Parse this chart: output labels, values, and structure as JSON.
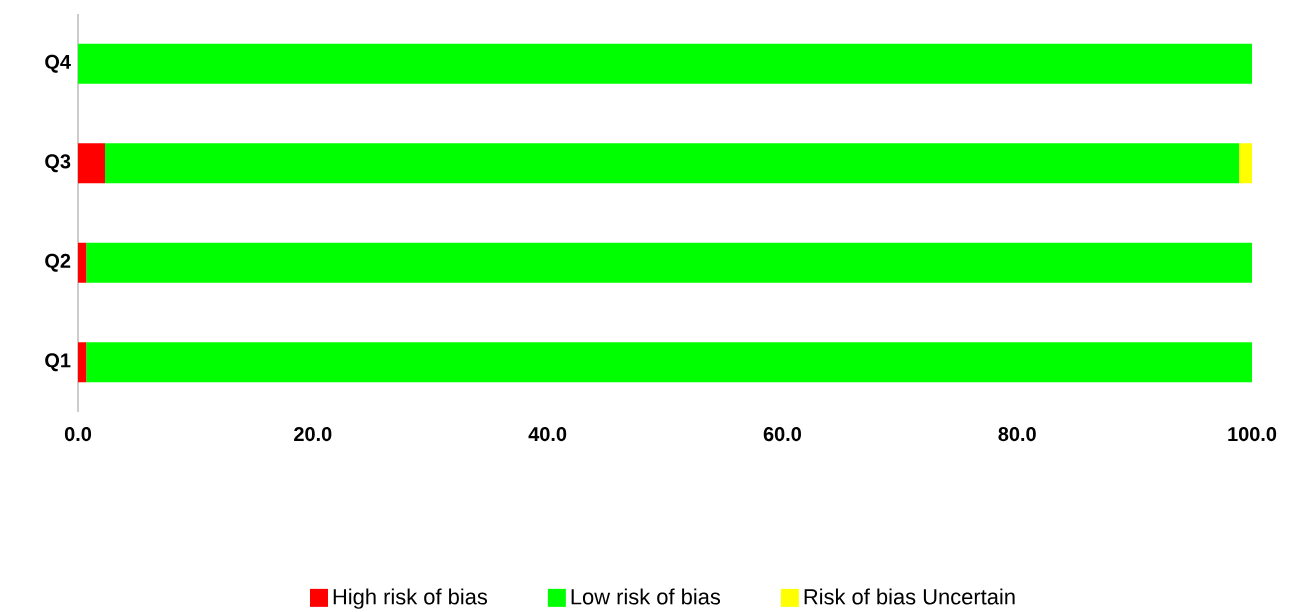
{
  "chart_data": {
    "type": "bar",
    "orientation": "horizontal",
    "stacked": true,
    "categories": [
      "Q4",
      "Q3",
      "Q2",
      "Q1"
    ],
    "series": [
      {
        "name": "High risk of bias",
        "color": "#ff0000",
        "values": [
          0,
          2.3,
          0.7,
          0.7
        ]
      },
      {
        "name": "Low risk of bias",
        "color": "#00ff00",
        "values": [
          100,
          96.6,
          99.3,
          99.3
        ]
      },
      {
        "name": "Risk of bias Uncertain",
        "color": "#ffff00",
        "values": [
          0,
          1.1,
          0,
          0
        ]
      }
    ],
    "xlim": [
      0,
      100
    ],
    "xticks": [
      {
        "value": 0,
        "label": "0.0"
      },
      {
        "value": 20,
        "label": "20.0"
      },
      {
        "value": 40,
        "label": "40.0"
      },
      {
        "value": 60,
        "label": "60.0"
      },
      {
        "value": 80,
        "label": "80.0"
      },
      {
        "value": 100,
        "label": "100.0"
      }
    ],
    "legend": "bottom"
  }
}
